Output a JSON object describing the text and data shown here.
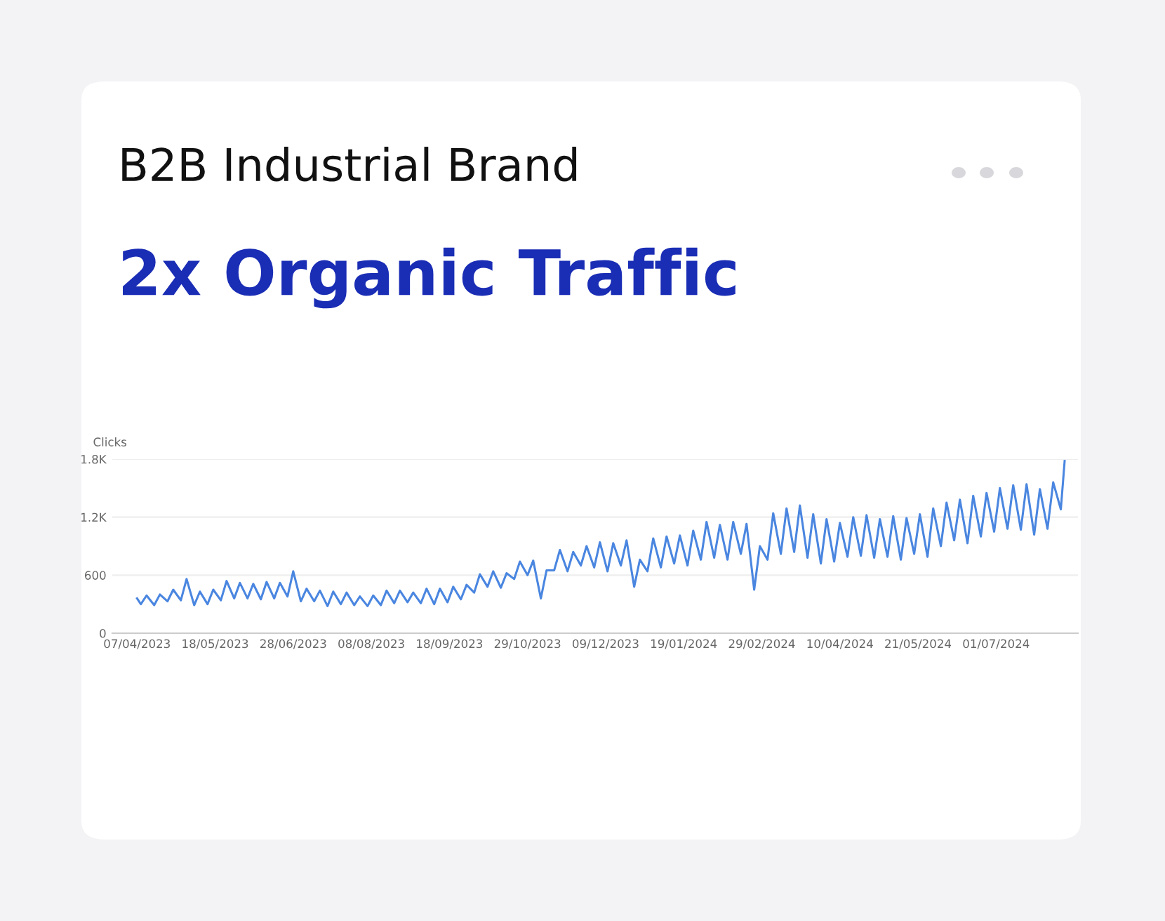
{
  "chart_data": {
    "type": "line",
    "title": "B2B Industrial Brand",
    "subtitle": "2x Organic Traffic",
    "ylabel": "Clicks",
    "color": "#4a86e0",
    "grid": "y",
    "legend": false,
    "marker": "none",
    "line_style": "solid",
    "ylim": [
      0,
      1800
    ],
    "yticks": [
      0,
      600,
      {
        "value": 1200,
        "label": "1.2K"
      },
      {
        "value": 1800,
        "label": "1.8K"
      }
    ],
    "xlim": [
      "2023-03-25",
      "2024-08-13"
    ],
    "xticks": [
      {
        "value": "2023-04-07",
        "label": "07/04/2023"
      },
      {
        "value": "2023-05-18",
        "label": "18/05/2023"
      },
      {
        "value": "2023-06-28",
        "label": "28/06/2023"
      },
      {
        "value": "2023-08-08",
        "label": "08/08/2023"
      },
      {
        "value": "2023-09-18",
        "label": "18/09/2023"
      },
      {
        "value": "2023-10-29",
        "label": "29/10/2023"
      },
      {
        "value": "2023-12-09",
        "label": "09/12/2023"
      },
      {
        "value": "2024-01-19",
        "label": "19/01/2024"
      },
      {
        "value": "2024-02-29",
        "label": "29/02/2024"
      },
      {
        "value": "2024-04-10",
        "label": "10/04/2024"
      },
      {
        "value": "2024-05-21",
        "label": "21/05/2024"
      },
      {
        "value": "2024-07-01",
        "label": "01/07/2024"
      }
    ],
    "x": [
      "2023-04-07",
      "2023-04-09",
      "2023-04-12",
      "2023-04-16",
      "2023-04-19",
      "2023-04-23",
      "2023-04-26",
      "2023-04-30",
      "2023-05-03",
      "2023-05-07",
      "2023-05-10",
      "2023-05-14",
      "2023-05-17",
      "2023-05-21",
      "2023-05-24",
      "2023-05-28",
      "2023-05-31",
      "2023-06-04",
      "2023-06-07",
      "2023-06-11",
      "2023-06-14",
      "2023-06-18",
      "2023-06-21",
      "2023-06-25",
      "2023-06-28",
      "2023-07-02",
      "2023-07-05",
      "2023-07-09",
      "2023-07-12",
      "2023-07-16",
      "2023-07-19",
      "2023-07-23",
      "2023-07-26",
      "2023-07-30",
      "2023-08-02",
      "2023-08-06",
      "2023-08-09",
      "2023-08-13",
      "2023-08-16",
      "2023-08-20",
      "2023-08-23",
      "2023-08-27",
      "2023-08-30",
      "2023-09-03",
      "2023-09-06",
      "2023-09-10",
      "2023-09-13",
      "2023-09-17",
      "2023-09-20",
      "2023-09-24",
      "2023-09-27",
      "2023-10-01",
      "2023-10-04",
      "2023-10-08",
      "2023-10-11",
      "2023-10-15",
      "2023-10-18",
      "2023-10-22",
      "2023-10-25",
      "2023-10-29",
      "2023-11-01",
      "2023-11-05",
      "2023-11-08",
      "2023-11-12",
      "2023-11-15",
      "2023-11-19",
      "2023-11-22",
      "2023-11-26",
      "2023-11-29",
      "2023-12-03",
      "2023-12-06",
      "2023-12-10",
      "2023-12-13",
      "2023-12-17",
      "2023-12-20",
      "2023-12-24",
      "2023-12-27",
      "2023-12-31",
      "2024-01-03",
      "2024-01-07",
      "2024-01-10",
      "2024-01-14",
      "2024-01-17",
      "2024-01-21",
      "2024-01-24",
      "2024-01-28",
      "2024-01-31",
      "2024-02-04",
      "2024-02-07",
      "2024-02-11",
      "2024-02-14",
      "2024-02-18",
      "2024-02-21",
      "2024-02-25",
      "2024-02-28",
      "2024-03-03",
      "2024-03-06",
      "2024-03-10",
      "2024-03-13",
      "2024-03-17",
      "2024-03-20",
      "2024-03-24",
      "2024-03-27",
      "2024-03-31",
      "2024-04-03",
      "2024-04-07",
      "2024-04-10",
      "2024-04-14",
      "2024-04-17",
      "2024-04-21",
      "2024-04-24",
      "2024-04-28",
      "2024-05-01",
      "2024-05-05",
      "2024-05-08",
      "2024-05-12",
      "2024-05-15",
      "2024-05-19",
      "2024-05-22",
      "2024-05-26",
      "2024-05-29",
      "2024-06-02",
      "2024-06-05",
      "2024-06-09",
      "2024-06-12",
      "2024-06-16",
      "2024-06-19",
      "2024-06-23",
      "2024-06-26",
      "2024-06-30",
      "2024-07-03",
      "2024-07-07",
      "2024-07-10",
      "2024-07-14",
      "2024-07-17",
      "2024-07-21",
      "2024-07-24",
      "2024-07-28",
      "2024-07-31",
      "2024-08-04",
      "2024-08-06"
    ],
    "values": [
      360,
      300,
      390,
      290,
      400,
      330,
      450,
      340,
      560,
      290,
      430,
      300,
      450,
      340,
      540,
      360,
      520,
      360,
      510,
      350,
      530,
      360,
      520,
      380,
      640,
      330,
      460,
      330,
      440,
      280,
      430,
      300,
      420,
      290,
      380,
      280,
      390,
      290,
      440,
      310,
      440,
      320,
      420,
      310,
      460,
      300,
      460,
      320,
      480,
      350,
      500,
      420,
      610,
      480,
      640,
      470,
      620,
      560,
      740,
      600,
      750,
      360,
      650,
      650,
      860,
      640,
      840,
      700,
      900,
      680,
      940,
      640,
      930,
      700,
      960,
      480,
      760,
      640,
      980,
      680,
      1000,
      720,
      1010,
      700,
      1060,
      760,
      1150,
      780,
      1120,
      760,
      1150,
      820,
      1130,
      450,
      900,
      760,
      1240,
      820,
      1290,
      840,
      1320,
      780,
      1230,
      720,
      1180,
      740,
      1140,
      790,
      1200,
      800,
      1220,
      780,
      1180,
      790,
      1210,
      760,
      1190,
      820,
      1230,
      790,
      1290,
      900,
      1350,
      960,
      1380,
      930,
      1420,
      1000,
      1450,
      1050,
      1500,
      1080,
      1530,
      1070,
      1540,
      1020,
      1490,
      1080,
      1560,
      1280,
      1780
    ]
  }
}
